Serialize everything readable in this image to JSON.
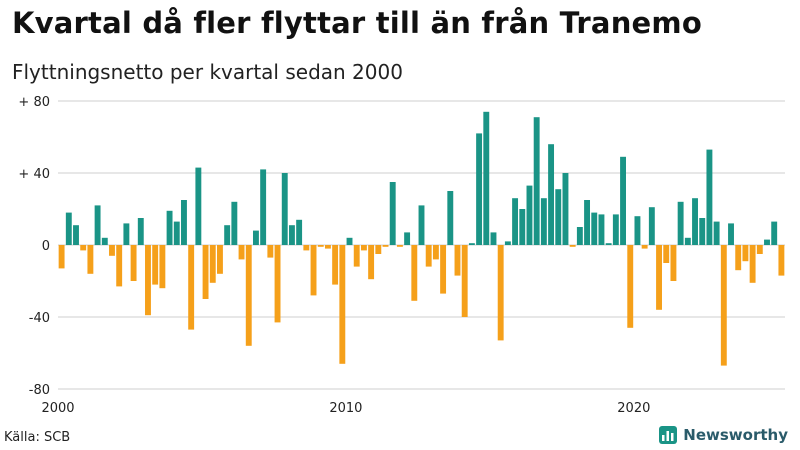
{
  "header": {
    "title": "Kvartal då fler flyttar till än från Tranemo",
    "subtitle": "Flyttningsnetto per kvartal sedan 2000"
  },
  "footer": {
    "source": "Källa: SCB",
    "brand": "Newsworthy"
  },
  "colors": {
    "positive": "#1a9486",
    "negative": "#f5a01a",
    "grid": "#cfcfcf",
    "logo": "#1a9486"
  },
  "chart_data": {
    "type": "bar",
    "x_start": "2000 Q1",
    "y_tick_labels": [
      "+ 80",
      "+ 40",
      "0",
      "-40",
      "-80"
    ],
    "y_ticks": [
      80,
      40,
      0,
      -40,
      -80
    ],
    "x_tick_labels": [
      "2000",
      "2010",
      "2020"
    ],
    "ylim": [
      -80,
      80
    ],
    "series": [
      {
        "values": [
          -13,
          18,
          11,
          -3,
          -16,
          22,
          4,
          -6,
          -23,
          12,
          -20,
          15,
          -39,
          -22,
          -24,
          19,
          13,
          25,
          -47,
          43,
          -30,
          -21,
          -16,
          11,
          24,
          -8,
          -56,
          8,
          42,
          -7,
          -43,
          40,
          11,
          14,
          -3,
          -28,
          -1,
          -2,
          -22,
          -66,
          4,
          -12,
          -3,
          -19,
          -5,
          -1,
          35,
          -1,
          7,
          -31,
          22,
          -12,
          -8,
          -27,
          30,
          -17,
          -40,
          1,
          62,
          74,
          7,
          -53,
          2,
          26,
          20,
          33,
          71,
          26,
          56,
          31,
          40,
          -1,
          10,
          25,
          18,
          17,
          1,
          17,
          49,
          -46,
          16,
          -2,
          21,
          -36,
          -10,
          -20,
          24,
          4,
          26,
          15,
          53,
          13,
          -67,
          12,
          -14,
          -9,
          -21,
          -5,
          3,
          13,
          -17
        ]
      }
    ]
  }
}
